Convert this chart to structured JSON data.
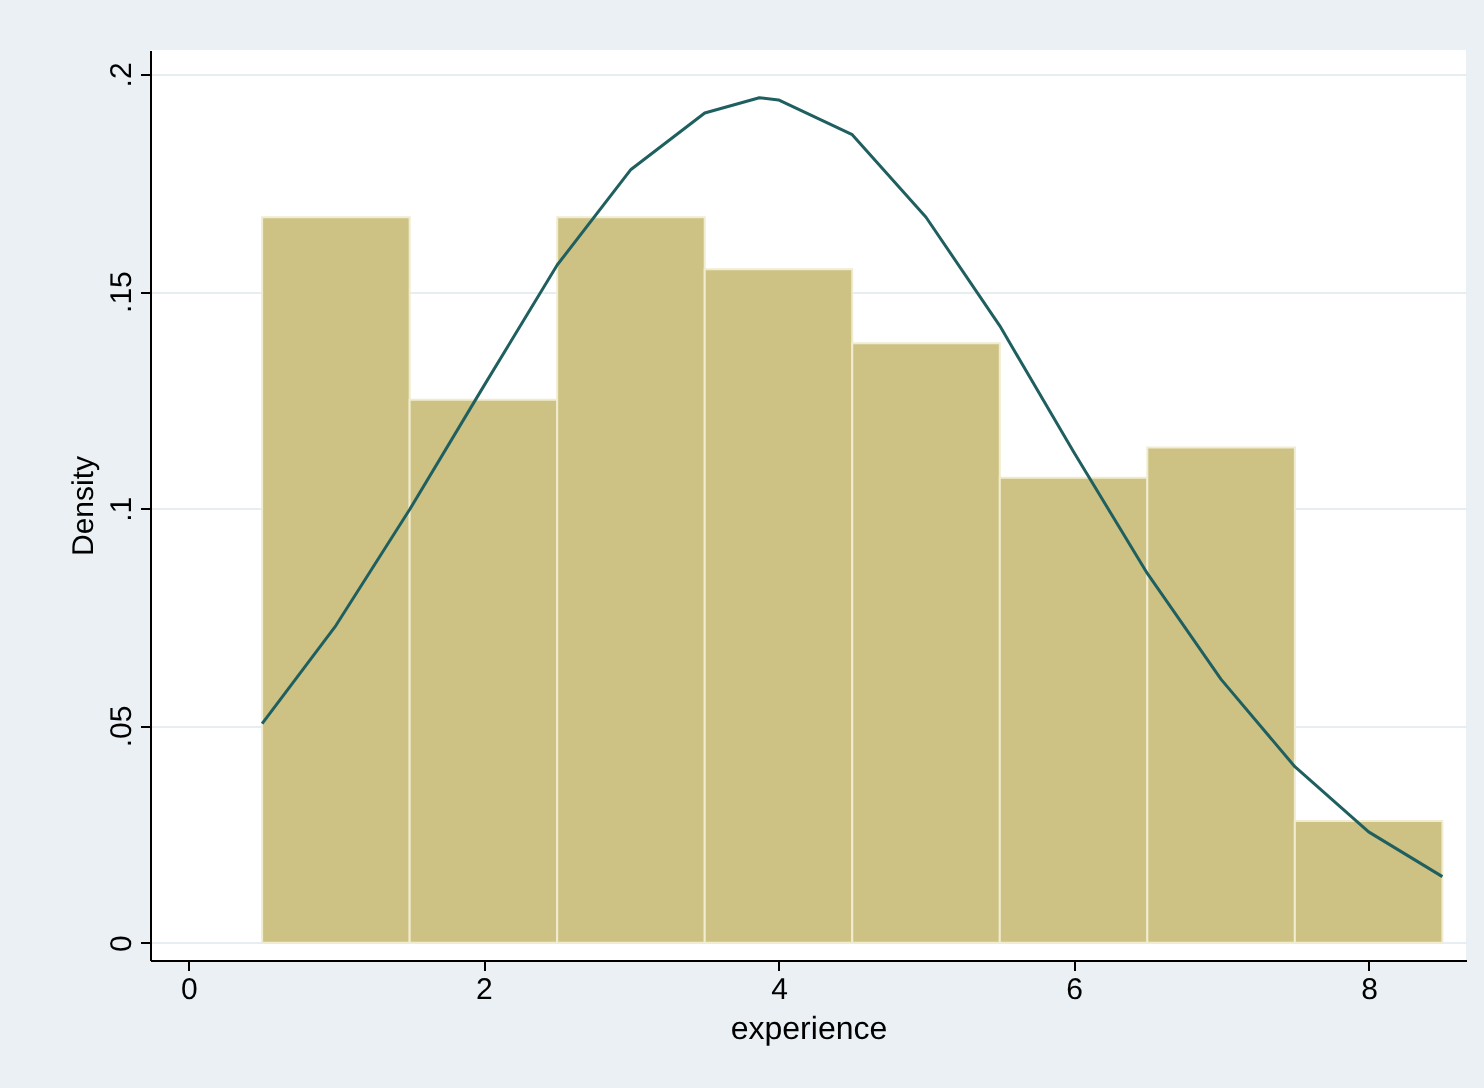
{
  "chart_data": {
    "type": "histogram",
    "xlabel": "experience",
    "ylabel": "Density",
    "series": [
      {
        "bins": [
          0.5,
          1.5,
          2.5,
          3.5,
          4.5,
          5.5,
          6.5,
          7.5,
          8.5
        ],
        "values": [
          0.167,
          0.125,
          0.167,
          0.155,
          0.138,
          0.107,
          0.114,
          0.028
        ],
        "color": "#cdc283"
      },
      {
        "type": "line",
        "x": [
          0.5,
          1,
          1.5,
          2,
          2.5,
          3,
          3.5,
          3.87,
          4,
          4.5,
          5,
          5.5,
          6,
          6.5,
          7,
          7.5,
          8,
          8.5
        ],
        "values": [
          0.0504,
          0.073,
          0.0997,
          0.128,
          0.156,
          0.178,
          0.191,
          0.1945,
          0.194,
          0.186,
          0.167,
          0.142,
          0.113,
          0.085,
          0.0606,
          0.0405,
          0.0255,
          0.0152
        ],
        "color": "#1f5f5f"
      }
    ],
    "xlim": [
      -0.26,
      8.66
    ],
    "xticks": [
      0,
      2,
      4,
      6,
      8
    ],
    "ylim": [
      -0.004,
      0.2055
    ],
    "yticks": [
      {
        "value": 0,
        "label": "0"
      },
      {
        "value": 0.05,
        "label": ".05"
      },
      {
        "value": 0.1,
        "label": ".1"
      },
      {
        "value": 0.15,
        "label": ".15"
      },
      {
        "value": 0.2,
        "label": ".2"
      }
    ],
    "grid": "y"
  }
}
